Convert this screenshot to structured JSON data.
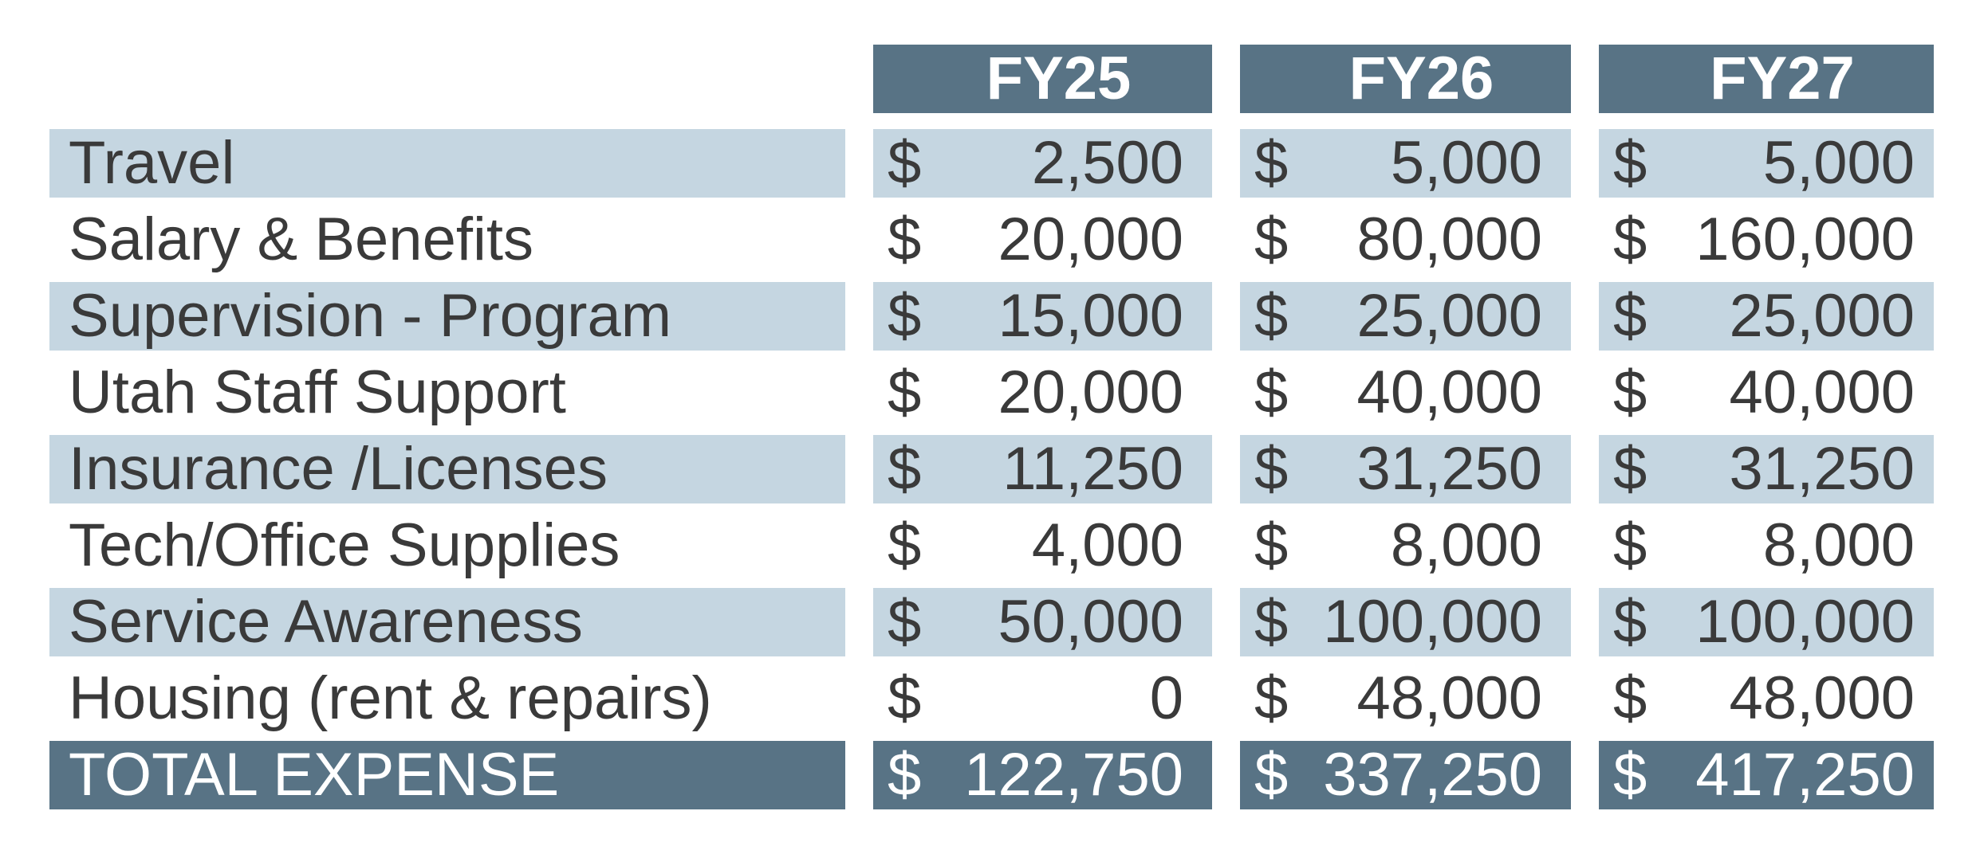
{
  "headers": [
    "FY25",
    "FY26",
    "FY27"
  ],
  "currency_symbol": "$",
  "rows": [
    {
      "label": "Travel",
      "values": [
        "2,500",
        "5,000",
        "5,000"
      ]
    },
    {
      "label": "Salary & Benefits",
      "values": [
        "20,000",
        "80,000",
        "160,000"
      ]
    },
    {
      "label": "Supervision - Program",
      "values": [
        "15,000",
        "25,000",
        "25,000"
      ]
    },
    {
      "label": "Utah Staff Support",
      "values": [
        "20,000",
        "40,000",
        "40,000"
      ]
    },
    {
      "label": "Insurance /Licenses",
      "values": [
        "11,250",
        "31,250",
        "31,250"
      ]
    },
    {
      "label": "Tech/Office Supplies",
      "values": [
        "4,000",
        "8,000",
        "8,000"
      ]
    },
    {
      "label": "Service Awareness",
      "values": [
        "50,000",
        "100,000",
        "100,000"
      ]
    },
    {
      "label": "Housing (rent & repairs)",
      "values": [
        "0",
        "48,000",
        "48,000"
      ]
    }
  ],
  "total": {
    "label": "TOTAL EXPENSE",
    "values": [
      "122,750",
      "337,250",
      "417,250"
    ]
  },
  "colors": {
    "header_bg": "#587385",
    "row_shade": "#c5d6e1",
    "text": "#3a3a3a"
  }
}
